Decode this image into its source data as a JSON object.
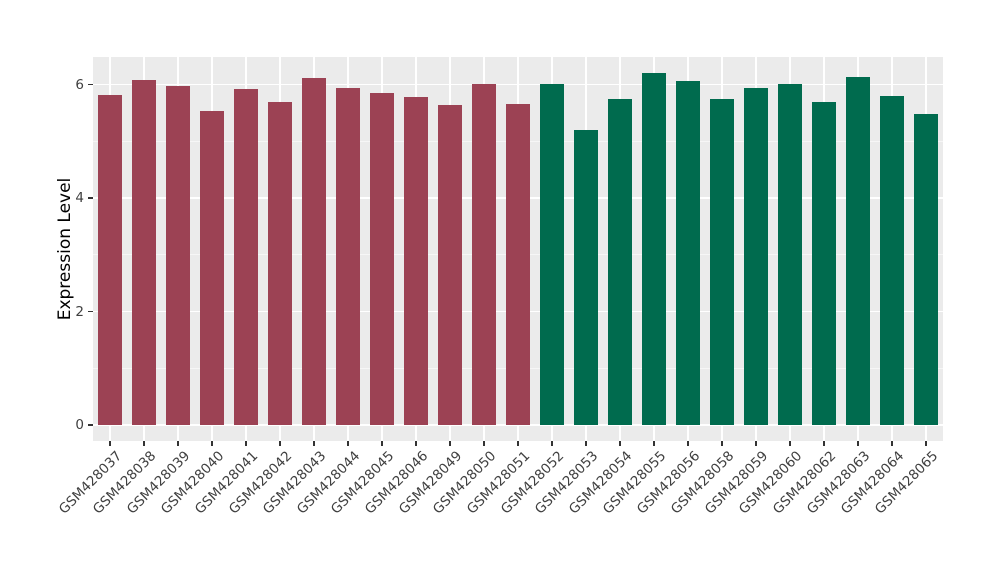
{
  "figure": {
    "background": "#FFFFFF",
    "panel_bg": "#EBEBEB",
    "grid_color": "#FFFFFF",
    "tick_color": "#333333",
    "tick_label_color": "#404040",
    "axis_title_color": "#000000"
  },
  "chart_data": {
    "type": "bar",
    "title": "",
    "xlabel": "",
    "ylabel": "Expression Level",
    "legend": "none",
    "grid": "on",
    "ylim": [
      0,
      6.49
    ],
    "yticks": [
      0,
      2,
      4,
      6
    ],
    "minor_yticks": [
      1,
      3,
      5
    ],
    "categories": [
      "GSM428037",
      "GSM428038",
      "GSM428039",
      "GSM428040",
      "GSM428041",
      "GSM428042",
      "GSM428043",
      "GSM428044",
      "GSM428045",
      "GSM428046",
      "GSM428049",
      "GSM428050",
      "GSM428051",
      "GSM428052",
      "GSM428053",
      "GSM428054",
      "GSM428055",
      "GSM428056",
      "GSM428058",
      "GSM428059",
      "GSM428060",
      "GSM428062",
      "GSM428063",
      "GSM428064",
      "GSM428065"
    ],
    "values": [
      5.81,
      6.09,
      5.97,
      5.54,
      5.92,
      5.7,
      6.11,
      5.95,
      5.86,
      5.79,
      5.64,
      6.02,
      5.66,
      6.02,
      5.2,
      5.75,
      6.2,
      6.06,
      5.75,
      5.94,
      6.02,
      5.69,
      6.13,
      5.8,
      5.48
    ],
    "groups": [
      "maroon",
      "maroon",
      "maroon",
      "maroon",
      "maroon",
      "maroon",
      "maroon",
      "maroon",
      "maroon",
      "maroon",
      "maroon",
      "maroon",
      "maroon",
      "green",
      "green",
      "green",
      "green",
      "green",
      "green",
      "green",
      "green",
      "green",
      "green",
      "green",
      "green"
    ],
    "group_colors": {
      "maroon": "#9C4254",
      "green": "#006B4E"
    }
  }
}
